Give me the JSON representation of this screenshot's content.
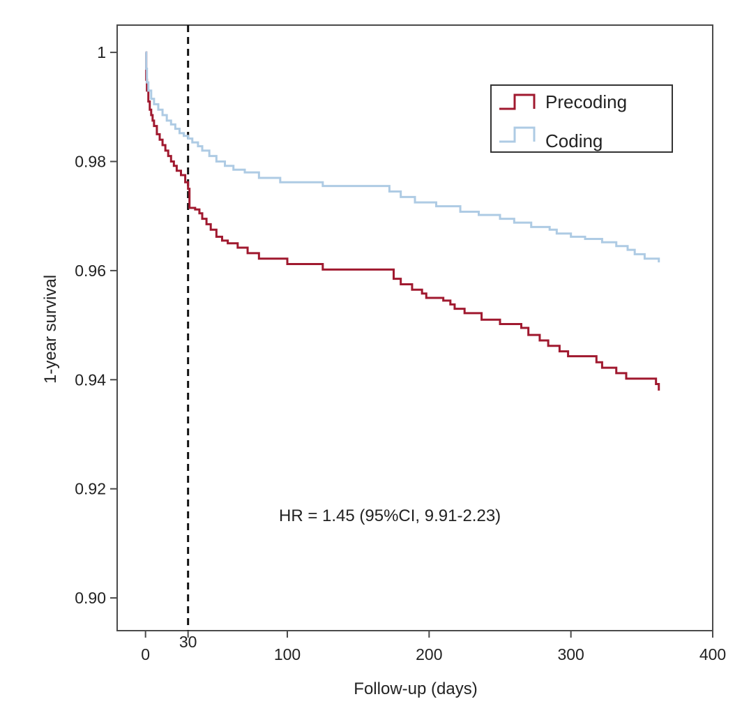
{
  "chart_data": {
    "type": "line",
    "title": "",
    "xlabel": "Follow-up (days)",
    "ylabel": "1-year survival",
    "xlim": [
      -20,
      400
    ],
    "ylim": [
      0.894,
      1.005
    ],
    "x_ticks": [
      0,
      30,
      100,
      200,
      300,
      400
    ],
    "x_tick_labels": [
      "0",
      "30",
      "100",
      "200",
      "300",
      "400"
    ],
    "y_ticks": [
      0.9,
      0.92,
      0.94,
      0.96,
      0.98,
      1.0
    ],
    "y_tick_labels": [
      "0.90",
      "0.92",
      "0.94",
      "0.96",
      "0.98",
      "1"
    ],
    "grid": false,
    "legend_position": "top-right",
    "reference_line": {
      "x": 30,
      "style": "dashed",
      "color": "#111111"
    },
    "annotation": "HR = 1.45 (95%CI, 9.91-2.23)",
    "series": [
      {
        "name": "Precoding",
        "color": "#a0192f",
        "step": true,
        "points": [
          [
            0,
            1.0
          ],
          [
            0.5,
            0.995
          ],
          [
            1,
            0.993
          ],
          [
            2,
            0.991
          ],
          [
            3,
            0.9895
          ],
          [
            4,
            0.9885
          ],
          [
            5,
            0.9875
          ],
          [
            6,
            0.9865
          ],
          [
            8,
            0.985
          ],
          [
            10,
            0.984
          ],
          [
            12,
            0.983
          ],
          [
            14,
            0.982
          ],
          [
            16,
            0.981
          ],
          [
            18,
            0.98
          ],
          [
            20,
            0.9792
          ],
          [
            22,
            0.9783
          ],
          [
            25,
            0.9775
          ],
          [
            28,
            0.9762
          ],
          [
            30,
            0.975
          ],
          [
            31,
            0.9715
          ],
          [
            35,
            0.9712
          ],
          [
            38,
            0.9705
          ],
          [
            40,
            0.9695
          ],
          [
            43,
            0.9685
          ],
          [
            46,
            0.9675
          ],
          [
            50,
            0.9662
          ],
          [
            54,
            0.9655
          ],
          [
            58,
            0.965
          ],
          [
            65,
            0.9642
          ],
          [
            72,
            0.9632
          ],
          [
            80,
            0.9622
          ],
          [
            100,
            0.9612
          ],
          [
            125,
            0.9602
          ],
          [
            175,
            0.9585
          ],
          [
            180,
            0.9575
          ],
          [
            188,
            0.9565
          ],
          [
            195,
            0.9558
          ],
          [
            198,
            0.955
          ],
          [
            210,
            0.9545
          ],
          [
            215,
            0.9538
          ],
          [
            218,
            0.953
          ],
          [
            225,
            0.9522
          ],
          [
            237,
            0.951
          ],
          [
            250,
            0.9502
          ],
          [
            265,
            0.9495
          ],
          [
            270,
            0.9482
          ],
          [
            278,
            0.9472
          ],
          [
            284,
            0.9462
          ],
          [
            292,
            0.9452
          ],
          [
            298,
            0.9443
          ],
          [
            318,
            0.9432
          ],
          [
            322,
            0.9422
          ],
          [
            332,
            0.9412
          ],
          [
            339,
            0.9402
          ],
          [
            360,
            0.9392
          ],
          [
            362,
            0.938
          ]
        ]
      },
      {
        "name": "Coding",
        "color": "#aecbe4",
        "step": true,
        "points": [
          [
            0,
            1.0
          ],
          [
            0.5,
            0.997
          ],
          [
            1,
            0.9945
          ],
          [
            2,
            0.993
          ],
          [
            4,
            0.9915
          ],
          [
            6,
            0.9905
          ],
          [
            9,
            0.9895
          ],
          [
            12,
            0.9885
          ],
          [
            15,
            0.9875
          ],
          [
            18,
            0.9868
          ],
          [
            21,
            0.986
          ],
          [
            24,
            0.9852
          ],
          [
            27,
            0.9847
          ],
          [
            30,
            0.9842
          ],
          [
            33,
            0.9835
          ],
          [
            37,
            0.9828
          ],
          [
            40,
            0.982
          ],
          [
            45,
            0.981
          ],
          [
            50,
            0.98
          ],
          [
            56,
            0.9792
          ],
          [
            62,
            0.9785
          ],
          [
            70,
            0.978
          ],
          [
            80,
            0.977
          ],
          [
            95,
            0.9762
          ],
          [
            125,
            0.9755
          ],
          [
            172,
            0.9745
          ],
          [
            180,
            0.9735
          ],
          [
            190,
            0.9725
          ],
          [
            205,
            0.9718
          ],
          [
            222,
            0.9708
          ],
          [
            235,
            0.9702
          ],
          [
            250,
            0.9695
          ],
          [
            260,
            0.9688
          ],
          [
            272,
            0.968
          ],
          [
            285,
            0.9675
          ],
          [
            290,
            0.9668
          ],
          [
            300,
            0.9662
          ],
          [
            310,
            0.9658
          ],
          [
            322,
            0.9652
          ],
          [
            332,
            0.9645
          ],
          [
            340,
            0.9638
          ],
          [
            345,
            0.963
          ],
          [
            352,
            0.9622
          ],
          [
            362,
            0.9615
          ]
        ]
      }
    ]
  }
}
